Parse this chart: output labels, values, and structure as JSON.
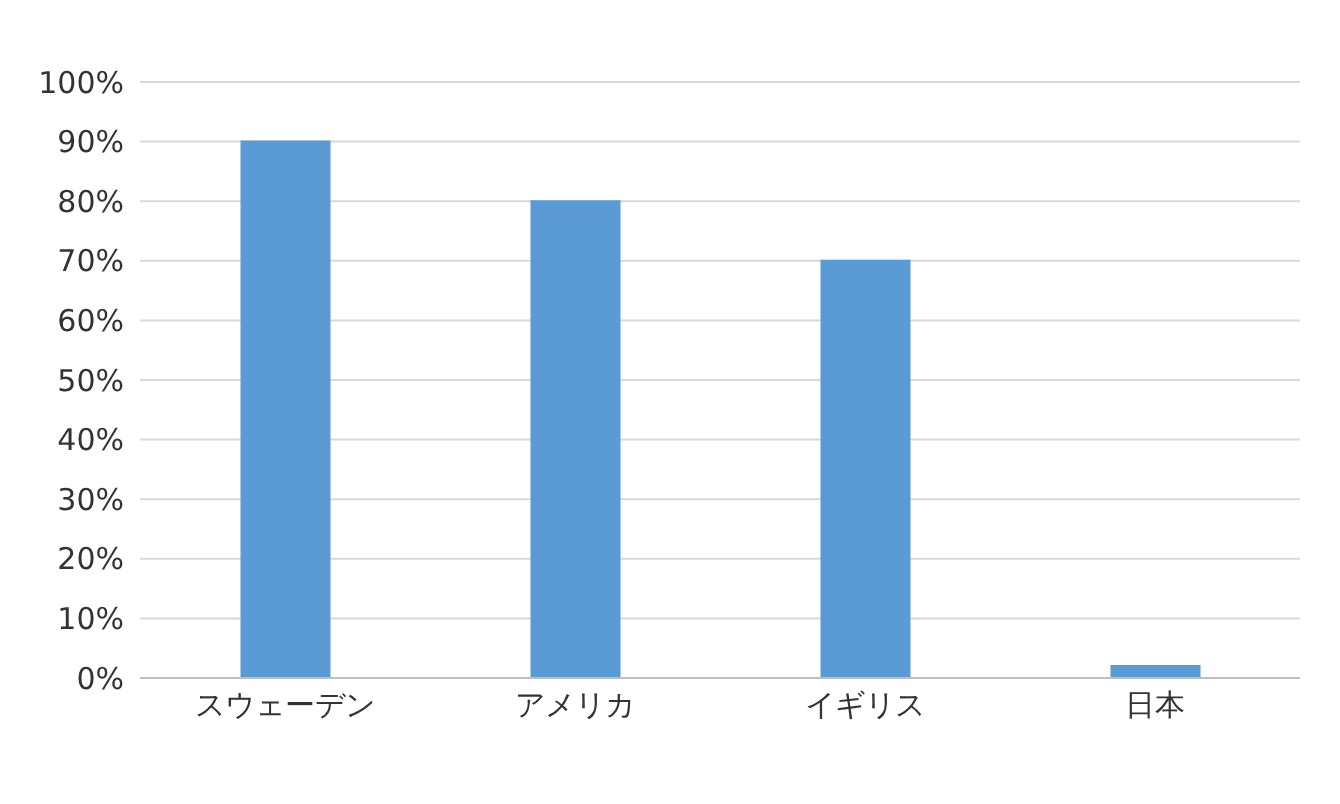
{
  "chart_data": {
    "type": "bar",
    "categories": [
      "スウェーデン",
      "アメリカ",
      "イギリス",
      "日本"
    ],
    "values": [
      90,
      80,
      70,
      2
    ],
    "color": "#5b9bd5",
    "ylim": [
      0,
      100
    ],
    "yticks": [
      {
        "value": 0,
        "label": "0%"
      },
      {
        "value": 10,
        "label": "10%"
      },
      {
        "value": 20,
        "label": "20%"
      },
      {
        "value": 30,
        "label": "30%"
      },
      {
        "value": 40,
        "label": "40%"
      },
      {
        "value": 50,
        "label": "50%"
      },
      {
        "value": 60,
        "label": "60%"
      },
      {
        "value": 70,
        "label": "70%"
      },
      {
        "value": 80,
        "label": "80%"
      },
      {
        "value": 90,
        "label": "90%"
      },
      {
        "value": 100,
        "label": "100%"
      }
    ],
    "grid": "y",
    "legend": false
  }
}
